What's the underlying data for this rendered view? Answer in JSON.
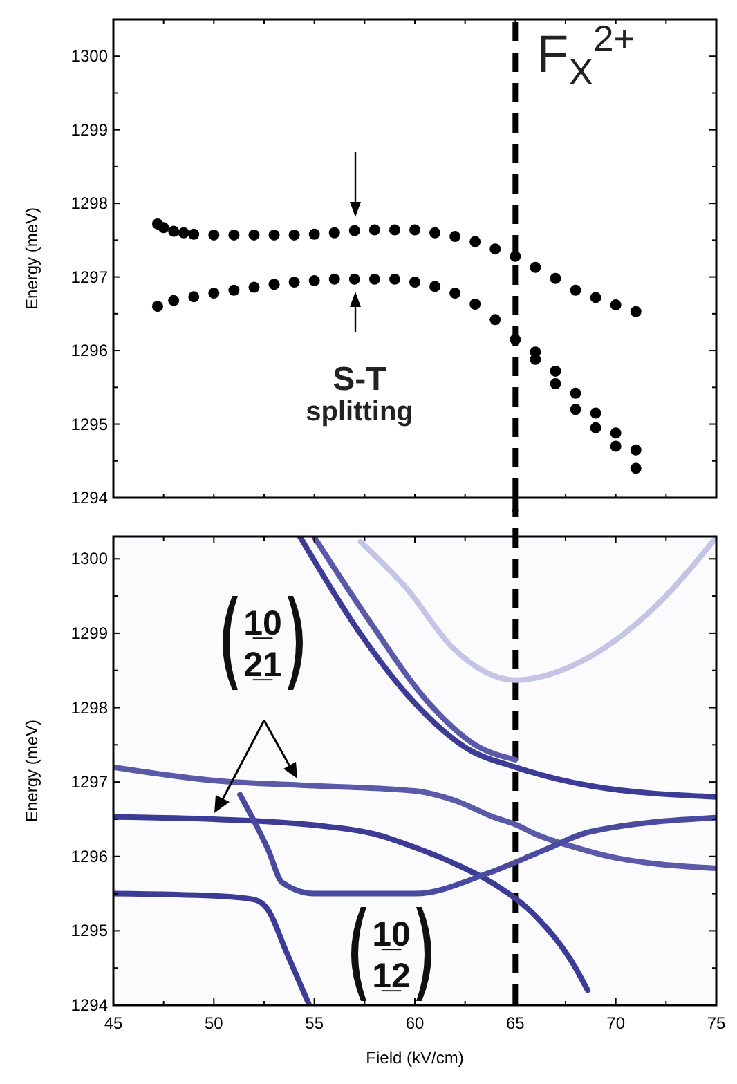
{
  "chart_data": [
    {
      "type": "scatter",
      "ylabel": "Energy (meV)",
      "xlim": [
        45,
        75
      ],
      "ylim": [
        1294,
        1300.5
      ],
      "xticks": [
        {
          "value": 45,
          "label": null
        },
        {
          "value": 47.5,
          "label": null
        },
        {
          "value": 50,
          "label": null
        },
        {
          "value": 52.5,
          "label": null
        },
        {
          "value": 55,
          "label": null
        },
        {
          "value": 57.5,
          "label": null
        },
        {
          "value": 60,
          "label": null
        },
        {
          "value": 62.5,
          "label": null
        },
        {
          "value": 65,
          "label": null
        },
        {
          "value": 67.5,
          "label": null
        },
        {
          "value": 70,
          "label": null
        },
        {
          "value": 72.5,
          "label": null
        },
        {
          "value": 75,
          "label": null
        }
      ],
      "yticks": [
        1294,
        {
          "value": 1294.5,
          "label": null
        },
        1295,
        {
          "value": 1295.5,
          "label": null
        },
        1296,
        {
          "value": 1296.5,
          "label": null
        },
        1297,
        {
          "value": 1297.5,
          "label": null
        },
        1298,
        {
          "value": 1298.5,
          "label": null
        },
        1299,
        {
          "value": 1299.5,
          "label": null
        },
        1300
      ],
      "tick_labels": "y",
      "marker": "circle",
      "grid": false,
      "series": [
        {
          "color": "#000000",
          "x": [
            47.2,
            47.5,
            48,
            48.5,
            49,
            50,
            51,
            52,
            53,
            54,
            55,
            56,
            57,
            58,
            59,
            60,
            61,
            62,
            63,
            64,
            65,
            66,
            67,
            68,
            69,
            70,
            71
          ],
          "values": [
            1297.72,
            1297.67,
            1297.62,
            1297.6,
            1297.58,
            1297.57,
            1297.57,
            1297.57,
            1297.57,
            1297.57,
            1297.58,
            1297.6,
            1297.63,
            1297.64,
            1297.64,
            1297.64,
            1297.6,
            1297.55,
            1297.48,
            1297.38,
            1297.28,
            1297.13,
            1296.98,
            1296.82,
            1296.72,
            1296.62,
            1296.53
          ]
        },
        {
          "color": "#000000",
          "x": [
            47.2,
            48,
            49,
            50,
            51,
            52,
            53,
            54,
            55,
            56,
            57,
            58,
            59,
            60,
            61,
            62,
            63,
            64,
            65,
            66,
            67,
            68,
            69,
            70,
            71
          ],
          "values": [
            1296.6,
            1296.68,
            1296.73,
            1296.78,
            1296.82,
            1296.86,
            1296.9,
            1296.93,
            1296.95,
            1296.97,
            1296.97,
            1296.97,
            1296.97,
            1296.93,
            1296.87,
            1296.78,
            1296.63,
            1296.42,
            1296.15,
            1295.88,
            1295.55,
            1295.2,
            1294.95,
            1294.7,
            1294.4
          ]
        },
        {
          "color": "#000000",
          "x": [
            66,
            67,
            68,
            69,
            70,
            71
          ],
          "values": [
            1295.98,
            1295.72,
            1295.42,
            1295.15,
            1294.88,
            1294.65
          ]
        }
      ],
      "ref_lines": [
        {
          "axis": "x",
          "value": 65,
          "line_style": "dashed",
          "color": "#000000"
        }
      ],
      "annotations": [
        "F$_{X}$$^{2+}$",
        "S-T splitting"
      ]
    },
    {
      "type": "line",
      "xlabel": "Field (kV/cm)",
      "ylabel": "Energy (meV)",
      "xlim": [
        45,
        75
      ],
      "ylim": [
        1294,
        1300.3
      ],
      "xticks": [
        45,
        {
          "value": 47.5,
          "label": null
        },
        50,
        {
          "value": 52.5,
          "label": null
        },
        55,
        {
          "value": 57.5,
          "label": null
        },
        60,
        {
          "value": 62.5,
          "label": null
        },
        65,
        {
          "value": 67.5,
          "label": null
        },
        70,
        {
          "value": 72.5,
          "label": null
        },
        75
      ],
      "yticks": [
        1294,
        {
          "value": 1294.5,
          "label": null
        },
        1295,
        {
          "value": 1295.5,
          "label": null
        },
        1296,
        {
          "value": 1296.5,
          "label": null
        },
        1297,
        {
          "value": 1297.5,
          "label": null
        },
        1298,
        {
          "value": 1298.5,
          "label": null
        },
        1299,
        {
          "value": 1299.5,
          "label": null
        },
        1300
      ],
      "grid": false,
      "marker": "none",
      "line_style": "solid",
      "series": [
        {
          "color": "#5a5aa8",
          "x": [
            45,
            50,
            55,
            60,
            62,
            64,
            65,
            66,
            68,
            70,
            72,
            75
          ],
          "values": [
            1297.2,
            1297.02,
            1296.95,
            1296.88,
            1296.75,
            1296.52,
            1296.43,
            1296.3,
            1296.12,
            1295.98,
            1295.9,
            1295.84
          ]
        },
        {
          "color": "#3c3c96",
          "x": [
            45,
            50,
            55,
            58,
            60,
            62,
            64,
            66,
            68,
            68.6
          ],
          "values": [
            1296.53,
            1296.5,
            1296.42,
            1296.3,
            1296.12,
            1295.9,
            1295.62,
            1295.2,
            1294.5,
            1294.2
          ]
        },
        {
          "color": "#3c3c96",
          "x": [
            45,
            50,
            52,
            52.7,
            53.6,
            54.75
          ],
          "values": [
            1295.5,
            1295.47,
            1295.42,
            1295.28,
            1294.72,
            1294
          ]
        },
        {
          "color": "#4a4aa0",
          "x": [
            51.3,
            52.7,
            53.4,
            55,
            60,
            63.7,
            66.4,
            68.7,
            75
          ],
          "values": [
            1296.83,
            1296.09,
            1295.65,
            1295.5,
            1295.5,
            1295.78,
            1296.08,
            1296.33,
            1296.52
          ]
        },
        {
          "color": "#3c3c96",
          "x": [
            54.3,
            57.3,
            60,
            62.6,
            65,
            68.7,
            75
          ],
          "values": [
            1300.29,
            1298.99,
            1298.06,
            1297.45,
            1297.2,
            1296.95,
            1296.8
          ]
        },
        {
          "color": "#5a5aa8",
          "x": [
            55,
            57.7,
            60.7,
            63,
            65
          ],
          "values": [
            1300.29,
            1299.18,
            1298.06,
            1297.5,
            1297.3
          ]
        },
        {
          "color": "#c4c4e4",
          "x": [
            57.3,
            59.6,
            61.9,
            65,
            68.7,
            72.2,
            75
          ],
          "values": [
            1300.23,
            1299.6,
            1298.8,
            1298.37,
            1298.68,
            1299.42,
            1300.29
          ]
        }
      ],
      "ref_lines": [
        {
          "axis": "x",
          "value": 65,
          "line_style": "dashed",
          "color": "#000000"
        }
      ],
      "annotations": [
        "1̲0\n2̲1",
        "1̲0\n1̲2"
      ]
    }
  ]
}
